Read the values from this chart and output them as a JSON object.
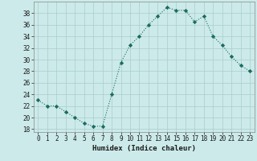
{
  "x": [
    0,
    1,
    2,
    3,
    4,
    5,
    6,
    7,
    8,
    9,
    10,
    11,
    12,
    13,
    14,
    15,
    16,
    17,
    18,
    19,
    20,
    21,
    22,
    23
  ],
  "y": [
    23,
    22,
    22,
    21,
    20,
    19,
    18.5,
    18.5,
    24,
    29.5,
    32.5,
    34,
    36,
    37.5,
    39,
    38.5,
    38.5,
    36.5,
    37.5,
    34,
    32.5,
    30.5,
    29,
    28
  ],
  "xlabel": "Humidex (Indice chaleur)",
  "line_color": "#1a6b5e",
  "marker": "D",
  "marker_size": 2.2,
  "bg_color": "#cceaea",
  "grid_color": "#aacccc",
  "xlim": [
    -0.5,
    23.5
  ],
  "ylim": [
    17.5,
    40
  ],
  "yticks": [
    18,
    20,
    22,
    24,
    26,
    28,
    30,
    32,
    34,
    36,
    38
  ],
  "xticks": [
    0,
    1,
    2,
    3,
    4,
    5,
    6,
    7,
    8,
    9,
    10,
    11,
    12,
    13,
    14,
    15,
    16,
    17,
    18,
    19,
    20,
    21,
    22,
    23
  ],
  "xtick_labels": [
    "0",
    "1",
    "2",
    "3",
    "4",
    "5",
    "6",
    "7",
    "8",
    "9",
    "10",
    "11",
    "12",
    "13",
    "14",
    "15",
    "16",
    "17",
    "18",
    "19",
    "20",
    "21",
    "22",
    "23"
  ],
  "label_fontsize": 6.5,
  "tick_fontsize": 5.5
}
